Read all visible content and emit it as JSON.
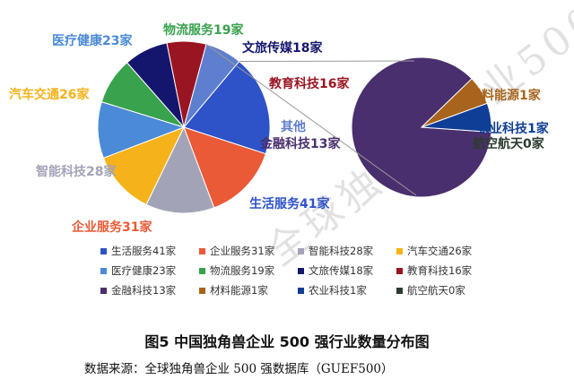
{
  "chart_data": {
    "type": "pie",
    "main_slices": [
      {
        "label": "生活服务",
        "value": 41,
        "unit": "家",
        "color": "#2e52c8"
      },
      {
        "label": "企业服务",
        "value": 31,
        "unit": "家",
        "color": "#ea5a36"
      },
      {
        "label": "智能科技",
        "value": 28,
        "unit": "家",
        "color": "#a3a3b8"
      },
      {
        "label": "汽车交通",
        "value": 26,
        "unit": "家",
        "color": "#f6b21a"
      },
      {
        "label": "医疗健康",
        "value": 23,
        "unit": "家",
        "color": "#4b8ad6"
      },
      {
        "label": "物流服务",
        "value": 19,
        "unit": "家",
        "color": "#38a24d"
      },
      {
        "label": "文旅传媒",
        "value": 18,
        "unit": "家",
        "color": "#14166e"
      },
      {
        "label": "教育科技",
        "value": 16,
        "unit": "家",
        "color": "#9a1522"
      },
      {
        "label": "其他",
        "value": 15,
        "color": "#5e7fcf"
      }
    ],
    "secondary_slices": [
      {
        "label": "金融科技",
        "value": 13,
        "unit": "家",
        "color": "#4a2f6e"
      },
      {
        "label": "材料能源",
        "value": 1,
        "unit": "家",
        "color": "#a8641c"
      },
      {
        "label": "农业科技",
        "value": 1,
        "unit": "家",
        "color": "#0f3e96"
      },
      {
        "label": "航空航天",
        "value": 0,
        "unit": "家",
        "color": "#2c3b2f"
      }
    ],
    "legend": [
      {
        "label": "生活服务41家",
        "color": "#2e52c8"
      },
      {
        "label": "企业服务31家",
        "color": "#ea5a36"
      },
      {
        "label": "智能科技28家",
        "color": "#a3a3b8"
      },
      {
        "label": "汽车交通26家",
        "color": "#f6b21a"
      },
      {
        "label": "医疗健康23家",
        "color": "#4b8ad6"
      },
      {
        "label": "物流服务19家",
        "color": "#38a24d"
      },
      {
        "label": "文旅传媒18家",
        "color": "#14166e"
      },
      {
        "label": "教育科技16家",
        "color": "#9a1522"
      },
      {
        "label": "金融科技13家",
        "color": "#4a2f6e"
      },
      {
        "label": "材料能源1家",
        "color": "#a8641c"
      },
      {
        "label": "农业科技1家",
        "color": "#0f3e96"
      },
      {
        "label": "航空航天0家",
        "color": "#2c3b2f"
      }
    ],
    "legend_position": "bottom",
    "caption": "图5    中国独角兽企业 500 强行业数量分布图",
    "source": "数据来源：全球独角兽企业 500 强数据库（GUEF500）",
    "watermark": "全球独角兽企业500强"
  }
}
